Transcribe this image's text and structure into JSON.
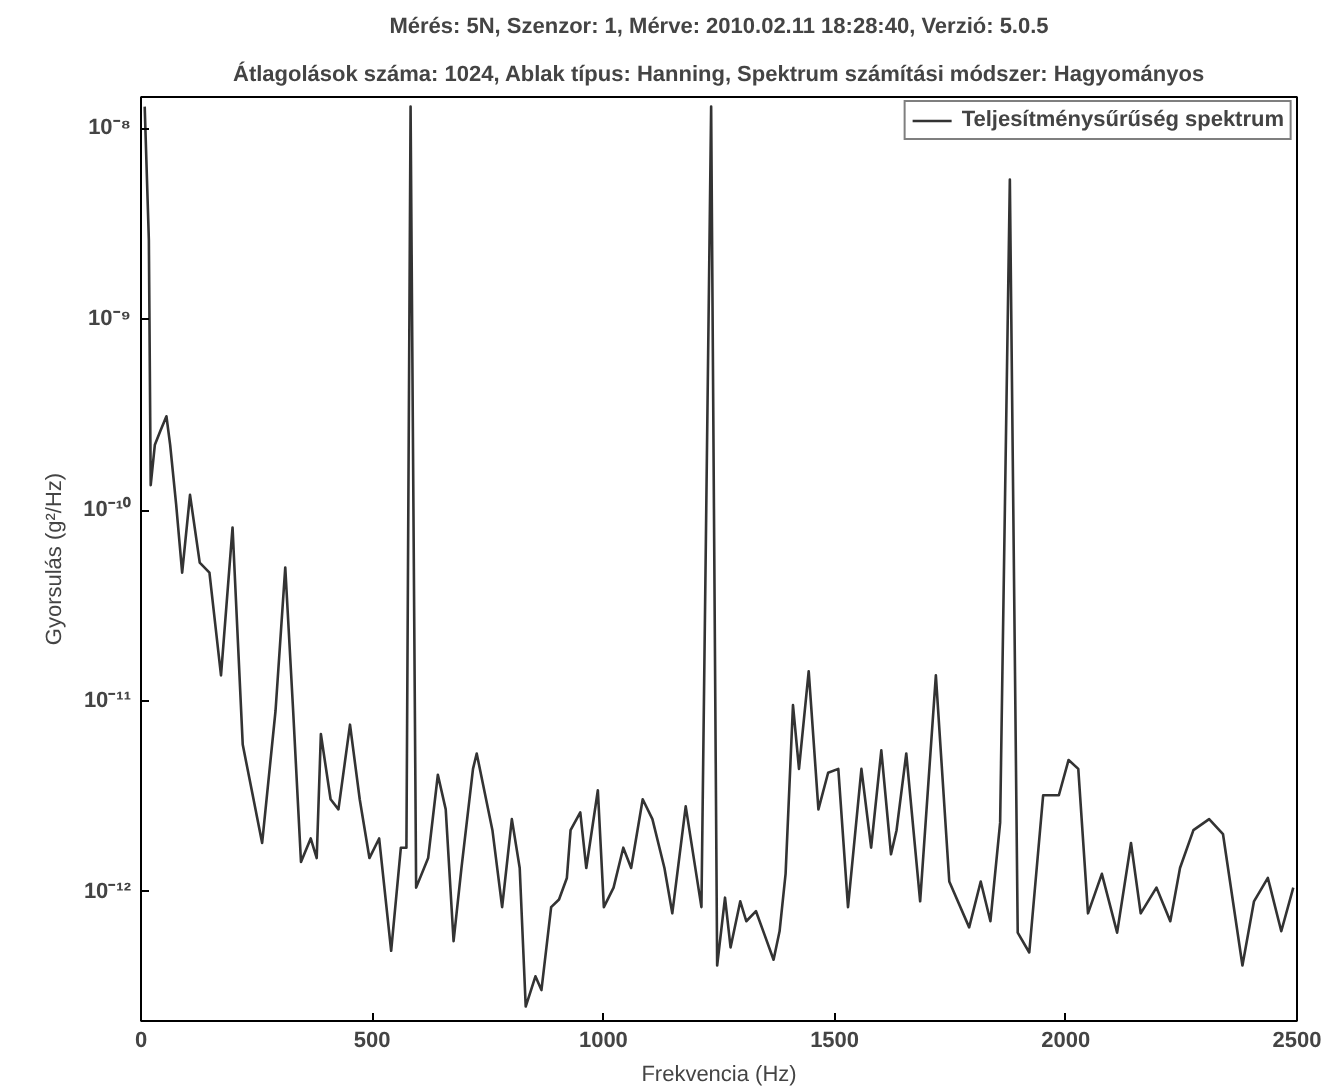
{
  "chart_data": {
    "type": "line",
    "title": "Mérés: 5N, Szenzor: 1, Mérve: 2010.02.11 18:28:40, Verzió: 5.0.5",
    "subtitle": "Átlagolások száma: 1024, Ablak típus: Hanning, Spektrum számítási módszer: Hagyományos",
    "xlabel": "Frekvencia (Hz)",
    "ylabel": "Gyorsulás (g²/Hz)",
    "xlim": [
      0,
      2500
    ],
    "xticks": [
      0,
      500,
      1000,
      1500,
      2000,
      2500
    ],
    "ylim": [
      2.1e-13,
      1.46e-08
    ],
    "yticks": [
      {
        "value": 1e-12,
        "label": "10⁻¹²"
      },
      {
        "value": 1e-11,
        "label": "10⁻¹¹"
      },
      {
        "value": 1e-10,
        "label": "10⁻¹⁰"
      },
      {
        "value": 1e-09,
        "label": "10⁻⁹"
      },
      {
        "value": 1e-08,
        "label": "10⁻⁸"
      }
    ],
    "log": "y",
    "grid": false,
    "legend": "top right",
    "marker": "none",
    "line_style": "solid",
    "series": [
      {
        "name": "Teljesítménysűrűség spektrum",
        "color": "#333333",
        "x": [
          8,
          17,
          21,
          30,
          42,
          55,
          63,
          76,
          89,
          106,
          127,
          148,
          173,
          198,
          220,
          262,
          291,
          312,
          329,
          346,
          367,
          380,
          389,
          410,
          427,
          452,
          473,
          494,
          515,
          541,
          562,
          574,
          583,
          595,
          621,
          642,
          659,
          676,
          693,
          718,
          726,
          760,
          781,
          802,
          819,
          832,
          853,
          866,
          887,
          904,
          921,
          929,
          950,
          963,
          988,
          1001,
          1022,
          1043,
          1060,
          1085,
          1106,
          1132,
          1149,
          1178,
          1212,
          1233,
          1246,
          1263,
          1275,
          1296,
          1309,
          1330,
          1368,
          1381,
          1394,
          1410,
          1423,
          1444,
          1465,
          1486,
          1508,
          1529,
          1558,
          1579,
          1601,
          1622,
          1634,
          1655,
          1685,
          1719,
          1748,
          1791,
          1816,
          1837,
          1858,
          1879,
          1896,
          1921,
          1951,
          1985,
          2006,
          2027,
          2048,
          2078,
          2111,
          2141,
          2162,
          2196,
          2226,
          2247,
          2276,
          2310,
          2340,
          2382,
          2407,
          2437,
          2466,
          2492
        ],
        "values": [
          1.3e-08,
          2.6e-09,
          1.35e-10,
          2.2e-10,
          2.6e-10,
          3.1e-10,
          2.2e-10,
          1.07e-10,
          4.7e-11,
          1.2e-10,
          5.3e-11,
          4.7e-11,
          1.36e-11,
          8.1e-11,
          5.9e-12,
          1.8e-12,
          8.9e-12,
          5e-11,
          8.9e-12,
          1.43e-12,
          1.9e-12,
          1.5e-12,
          6.7e-12,
          3.05e-12,
          2.7e-12,
          7.5e-12,
          3.05e-12,
          1.5e-12,
          1.9e-12,
          4.9e-13,
          1.7e-12,
          1.7e-12,
          1.3e-08,
          1.05e-12,
          1.5e-12,
          4.1e-12,
          2.7e-12,
          5.5e-13,
          1.33e-12,
          4.4e-12,
          5.3e-12,
          2.1e-12,
          8.3e-13,
          2.4e-12,
          1.33e-12,
          2.5e-13,
          3.6e-13,
          3.05e-13,
          8.3e-13,
          9.1e-13,
          1.18e-12,
          2.1e-12,
          2.6e-12,
          1.33e-12,
          3.4e-12,
          8.3e-13,
          1.05e-12,
          1.7e-12,
          1.33e-12,
          3.05e-12,
          2.4e-12,
          1.33e-12,
          7.7e-13,
          2.8e-12,
          8.3e-13,
          1.3e-08,
          4.1e-13,
          9.3e-13,
          5.1e-13,
          8.9e-13,
          7e-13,
          7.9e-13,
          4.4e-13,
          6.2e-13,
          1.24e-12,
          9.5e-12,
          4.4e-12,
          1.43e-11,
          2.7e-12,
          4.2e-12,
          4.4e-12,
          8.3e-13,
          4.4e-12,
          1.7e-12,
          5.5e-12,
          1.57e-12,
          2.1e-12,
          5.3e-12,
          8.9e-13,
          1.36e-11,
          1.13e-12,
          6.5e-13,
          1.13e-12,
          7e-13,
          2.3e-12,
          5.4e-09,
          6.1e-13,
          4.8e-13,
          3.2e-12,
          3.2e-12,
          4.9e-12,
          4.4e-12,
          7.7e-13,
          1.24e-12,
          6.1e-13,
          1.8e-12,
          7.7e-13,
          1.05e-12,
          7e-13,
          1.33e-12,
          2.1e-12,
          2.4e-12,
          2e-12,
          4.1e-13,
          8.9e-13,
          1.18e-12,
          6.2e-13,
          1.05e-12
        ]
      }
    ]
  }
}
